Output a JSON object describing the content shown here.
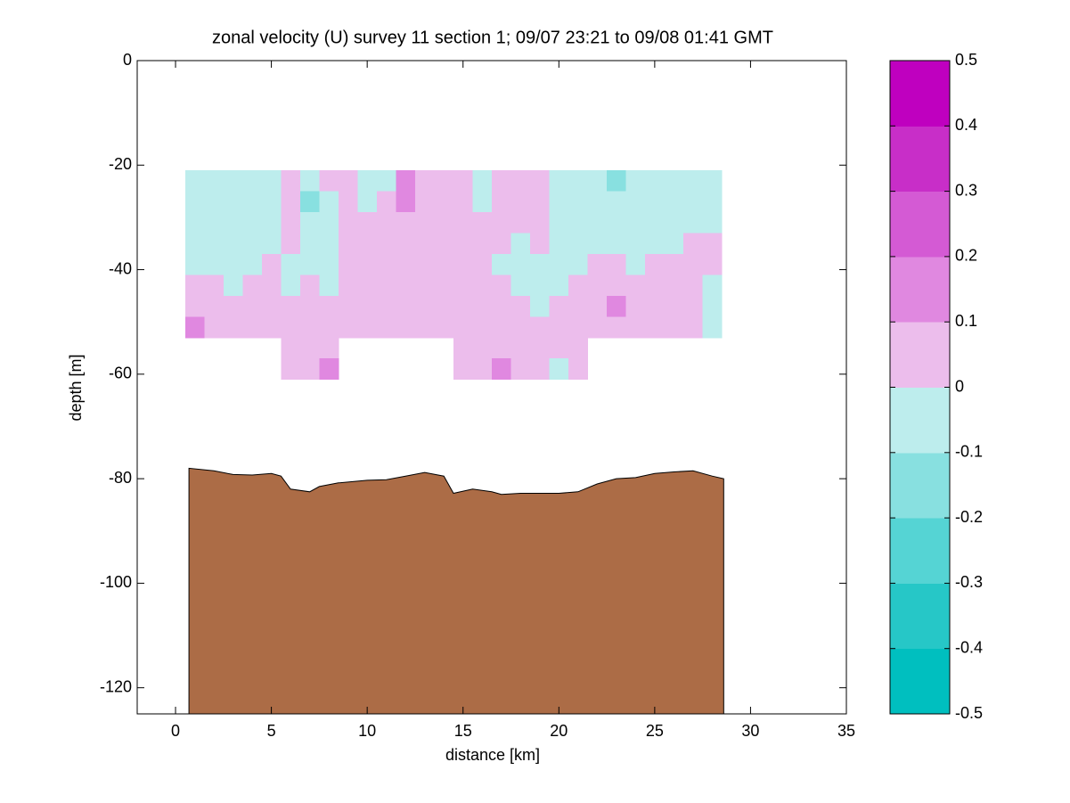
{
  "chart_data": {
    "type": "contourf",
    "title": "zonal velocity (U) survey 11 section 1; 09/07 23:21 to 09/08 01:41 GMT",
    "xlabel": "distance [km]",
    "ylabel": "depth [m]",
    "xlim": [
      -2,
      35
    ],
    "xticks": [
      0,
      5,
      10,
      15,
      20,
      25,
      30,
      35
    ],
    "ylim": [
      -125,
      0
    ],
    "yticks": [
      -120,
      -100,
      -80,
      -60,
      -40,
      -20,
      0
    ],
    "x": [
      1,
      2,
      3,
      4,
      5,
      6,
      7,
      8,
      9,
      10,
      11,
      12,
      13,
      14,
      15,
      16,
      17,
      18,
      19,
      20,
      21,
      22,
      23,
      24,
      25,
      26,
      27,
      28
    ],
    "depth": [
      -23,
      -27,
      -31,
      -35,
      -39,
      -43,
      -47,
      -51,
      -55,
      -59
    ],
    "z": [
      [
        -0.05,
        -0.05,
        -0.05,
        -0.05,
        -0.05,
        0.05,
        -0.05,
        0.05,
        0.05,
        -0.05,
        -0.05,
        0.15,
        0.05,
        0.05,
        0.05,
        -0.05,
        0.05,
        0.05,
        0.05,
        -0.05,
        -0.05,
        -0.05,
        -0.15,
        -0.05,
        -0.05,
        -0.05,
        -0.05,
        -0.05
      ],
      [
        -0.05,
        -0.05,
        -0.05,
        -0.05,
        -0.05,
        0.05,
        -0.15,
        -0.05,
        0.05,
        -0.05,
        0.05,
        0.15,
        0.05,
        0.05,
        0.05,
        -0.05,
        0.05,
        0.05,
        0.05,
        -0.05,
        -0.05,
        -0.05,
        -0.05,
        -0.05,
        -0.05,
        -0.05,
        -0.05,
        -0.05
      ],
      [
        -0.05,
        -0.05,
        -0.05,
        -0.05,
        -0.05,
        0.05,
        -0.05,
        -0.05,
        0.05,
        0.05,
        0.05,
        0.05,
        0.05,
        0.05,
        0.05,
        0.05,
        0.05,
        0.05,
        0.05,
        -0.05,
        -0.05,
        -0.05,
        -0.05,
        -0.05,
        -0.05,
        -0.05,
        -0.05,
        -0.05
      ],
      [
        -0.05,
        -0.05,
        -0.05,
        -0.05,
        -0.05,
        0.05,
        -0.05,
        -0.05,
        0.05,
        0.05,
        0.05,
        0.05,
        0.05,
        0.05,
        0.05,
        0.05,
        0.05,
        -0.05,
        0.05,
        -0.05,
        -0.05,
        -0.05,
        -0.05,
        -0.05,
        -0.05,
        -0.05,
        0.05,
        0.05
      ],
      [
        -0.05,
        -0.05,
        -0.05,
        -0.05,
        0.05,
        -0.05,
        -0.05,
        -0.05,
        0.05,
        0.05,
        0.05,
        0.05,
        0.05,
        0.05,
        0.05,
        0.05,
        -0.05,
        -0.05,
        -0.05,
        -0.05,
        -0.05,
        0.05,
        0.05,
        -0.05,
        0.05,
        0.05,
        0.05,
        0.05
      ],
      [
        0.05,
        0.05,
        -0.05,
        0.05,
        0.05,
        -0.05,
        0.05,
        -0.05,
        0.05,
        0.05,
        0.05,
        0.05,
        0.05,
        0.05,
        0.05,
        0.05,
        0.05,
        -0.05,
        -0.05,
        -0.05,
        0.05,
        0.05,
        0.05,
        0.05,
        0.05,
        0.05,
        0.05,
        -0.05
      ],
      [
        0.05,
        0.05,
        0.05,
        0.05,
        0.05,
        0.05,
        0.05,
        0.05,
        0.05,
        0.05,
        0.05,
        0.05,
        0.05,
        0.05,
        0.05,
        0.05,
        0.05,
        0.05,
        -0.05,
        0.05,
        0.05,
        0.05,
        0.15,
        0.05,
        0.05,
        0.05,
        0.05,
        -0.05
      ],
      [
        0.15,
        0.05,
        0.05,
        0.05,
        0.05,
        0.05,
        0.05,
        0.05,
        0.05,
        0.05,
        0.05,
        0.05,
        0.05,
        0.05,
        0.05,
        0.05,
        0.05,
        0.05,
        0.05,
        0.05,
        0.05,
        0.05,
        0.05,
        0.05,
        0.05,
        0.05,
        0.05,
        -0.05
      ],
      [
        null,
        null,
        null,
        null,
        null,
        0.05,
        0.05,
        0.05,
        null,
        null,
        null,
        null,
        null,
        null,
        0.05,
        0.05,
        0.05,
        0.05,
        0.05,
        0.05,
        0.05,
        null,
        null,
        null,
        null,
        null,
        null,
        null
      ],
      [
        null,
        null,
        null,
        null,
        null,
        0.05,
        0.05,
        0.15,
        null,
        null,
        null,
        null,
        null,
        null,
        0.05,
        0.05,
        0.15,
        0.05,
        0.05,
        -0.05,
        0.05,
        null,
        null,
        null,
        null,
        null,
        null,
        null
      ]
    ],
    "clim": [
      -0.5,
      0.5
    ],
    "cticks": [
      -0.5,
      -0.4,
      -0.3,
      -0.2,
      -0.1,
      0,
      0.1,
      0.2,
      0.3,
      0.4,
      0.5
    ],
    "colors": [
      "#00bfbf",
      "#26c7c7",
      "#55d4d4",
      "#88e0e0",
      "#bdeded",
      "#ecbdec",
      "#e088e0",
      "#d45ad4",
      "#c82ec8",
      "#bf00bf"
    ],
    "bottom": {
      "color": "#ac6c46",
      "x": [
        0.7,
        2,
        3,
        4,
        5,
        5.5,
        6,
        7,
        7.5,
        8.5,
        10,
        11,
        12,
        13,
        14,
        14.5,
        15.5,
        16.5,
        17,
        18,
        20,
        21,
        22,
        23,
        24,
        25,
        26,
        27,
        28,
        28.6
      ],
      "depth": [
        -78,
        -78.5,
        -79.2,
        -79.3,
        -79,
        -79.5,
        -82,
        -82.5,
        -81.5,
        -80.8,
        -80.3,
        -80.2,
        -79.5,
        -78.8,
        -79.5,
        -82.8,
        -82,
        -82.5,
        -83,
        -82.8,
        -82.8,
        -82.5,
        -81,
        -80,
        -79.8,
        -79,
        -78.7,
        -78.5,
        -79.5,
        -80
      ]
    }
  }
}
